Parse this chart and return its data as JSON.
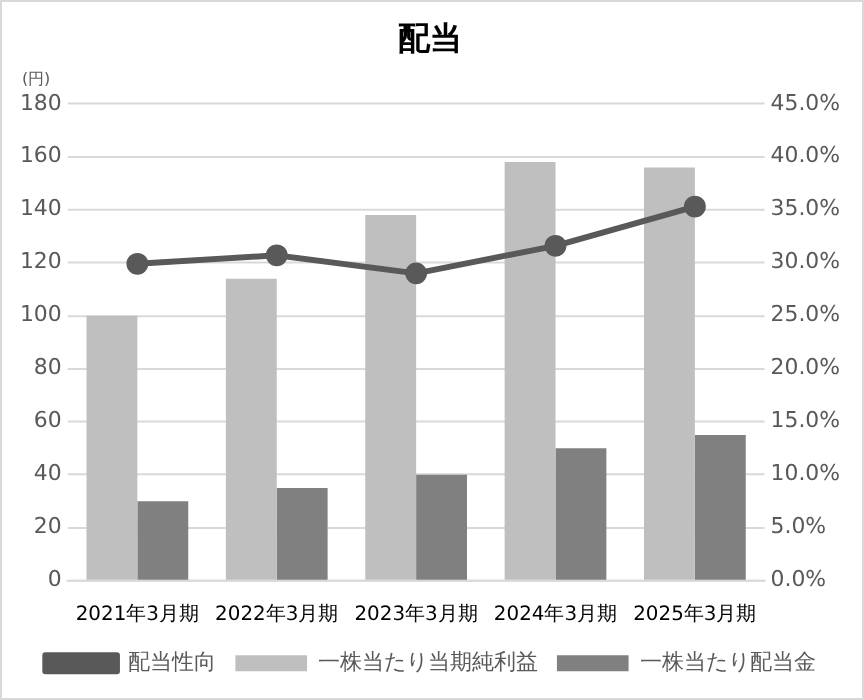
{
  "chart_data": {
    "type": "bar",
    "title": "配当",
    "ylabel": "(円)",
    "categories": [
      "2021年3月期",
      "2022年3月期",
      "2023年3月期",
      "2024年3月期",
      "2025年3月期"
    ],
    "series": [
      {
        "name": "一株当たり当期純利益",
        "color": "#bfbfbf",
        "values": [
          100,
          114,
          138,
          158,
          156
        ]
      },
      {
        "name": "一株当たり配当金",
        "color": "#808080",
        "values": [
          30,
          35,
          40,
          50,
          55
        ]
      },
      {
        "name": "配当性向",
        "type": "line",
        "axis": "y2",
        "color": "#595959",
        "values": [
          29.9,
          30.7,
          29.0,
          31.6,
          35.3
        ]
      }
    ],
    "ylim": [
      0,
      180
    ],
    "yticks": [
      0,
      20,
      40,
      60,
      80,
      100,
      120,
      140,
      160,
      180
    ],
    "y2lim": [
      0,
      45
    ],
    "y2ticks": [
      {
        "value": 0,
        "label": "0.0%"
      },
      {
        "value": 5,
        "label": "5.0%"
      },
      {
        "value": 10,
        "label": "10.0%"
      },
      {
        "value": 15,
        "label": "15.0%"
      },
      {
        "value": 20,
        "label": "20.0%"
      },
      {
        "value": 25,
        "label": "25.0%"
      },
      {
        "value": 30,
        "label": "30.0%"
      },
      {
        "value": 35,
        "label": "35.0%"
      },
      {
        "value": 40,
        "label": "40.0%"
      },
      {
        "value": 45,
        "label": "45.0%"
      }
    ],
    "grid": "y",
    "legend": "bottom",
    "marker": "circle",
    "line_style": "solid"
  }
}
